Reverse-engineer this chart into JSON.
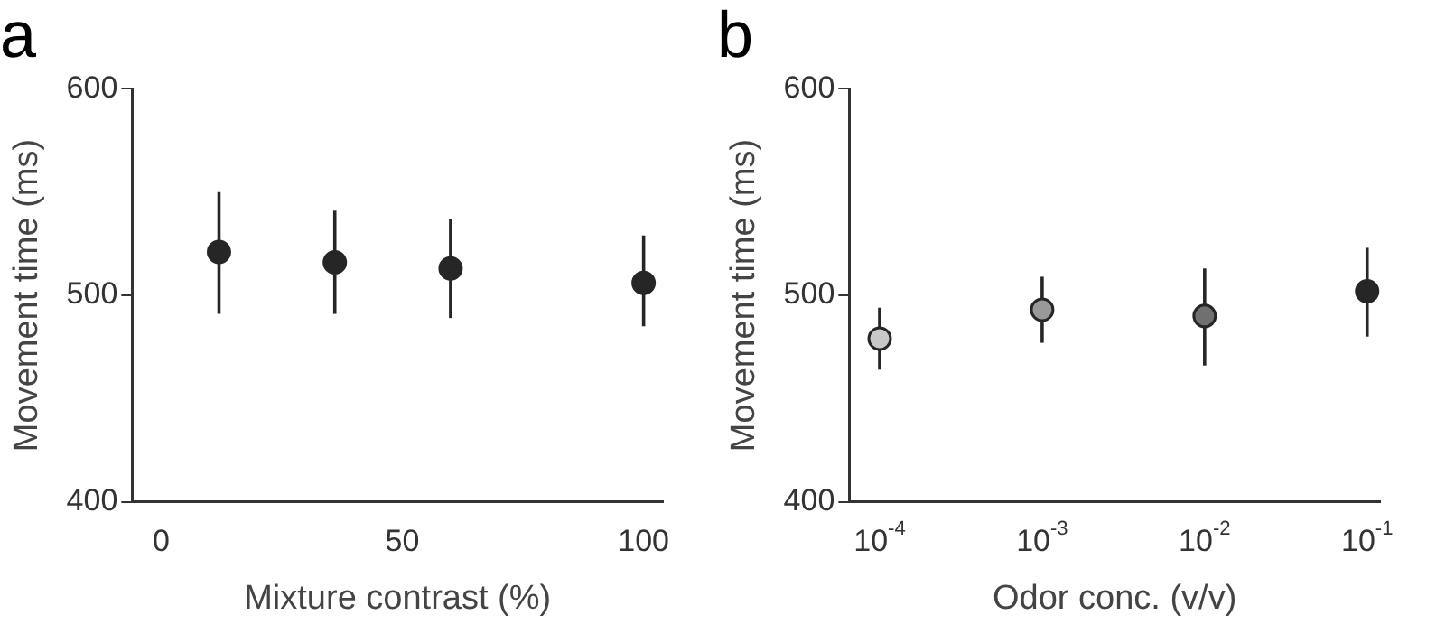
{
  "chart_data": [
    {
      "type": "scatter",
      "title": "a",
      "xlabel": "Mixture contrast (%)",
      "ylabel": "Movement time (ms)",
      "x": [
        12,
        36,
        60,
        100
      ],
      "xlim": [
        -6,
        104
      ],
      "xticks": [
        0,
        50,
        100
      ],
      "ylim": [
        400,
        600
      ],
      "yticks": [
        400,
        500,
        600
      ],
      "grid": false,
      "legend": false,
      "marker": "circle",
      "series": [
        {
          "color": "#262626",
          "values": [
            521,
            516,
            513,
            506
          ],
          "errors": [
            [
              491,
              550
            ],
            [
              491,
              541
            ],
            [
              489,
              537
            ],
            [
              485,
              529
            ]
          ]
        }
      ]
    },
    {
      "type": "scatter",
      "title": "b",
      "xlabel": "Odor conc. (v/v)",
      "ylabel": "Movement time (ms)",
      "log": "x",
      "x": [
        0.0001,
        0.001,
        0.01,
        0.1
      ],
      "xlim": [
        6.5e-05,
        0.12
      ],
      "xticks": [
        {
          "value": 0.0001,
          "label": "10$^{-4}$"
        },
        {
          "value": 0.001,
          "label": "10$^{-3}$"
        },
        {
          "value": 0.01,
          "label": "10$^{-2}$"
        },
        {
          "value": 0.1,
          "label": "10$^{-1}$"
        }
      ],
      "ylim": [
        400,
        600
      ],
      "yticks": [
        400,
        500,
        600
      ],
      "grid": false,
      "legend": false,
      "marker": "circle",
      "series": [
        {
          "colors": [
            "#c8c8c8",
            "#999999",
            "#707070",
            "#262626"
          ],
          "values": [
            479,
            493,
            490,
            502
          ],
          "errors": [
            [
              464,
              494
            ],
            [
              477,
              509
            ],
            [
              466,
              513
            ],
            [
              480,
              523
            ]
          ]
        }
      ]
    }
  ]
}
